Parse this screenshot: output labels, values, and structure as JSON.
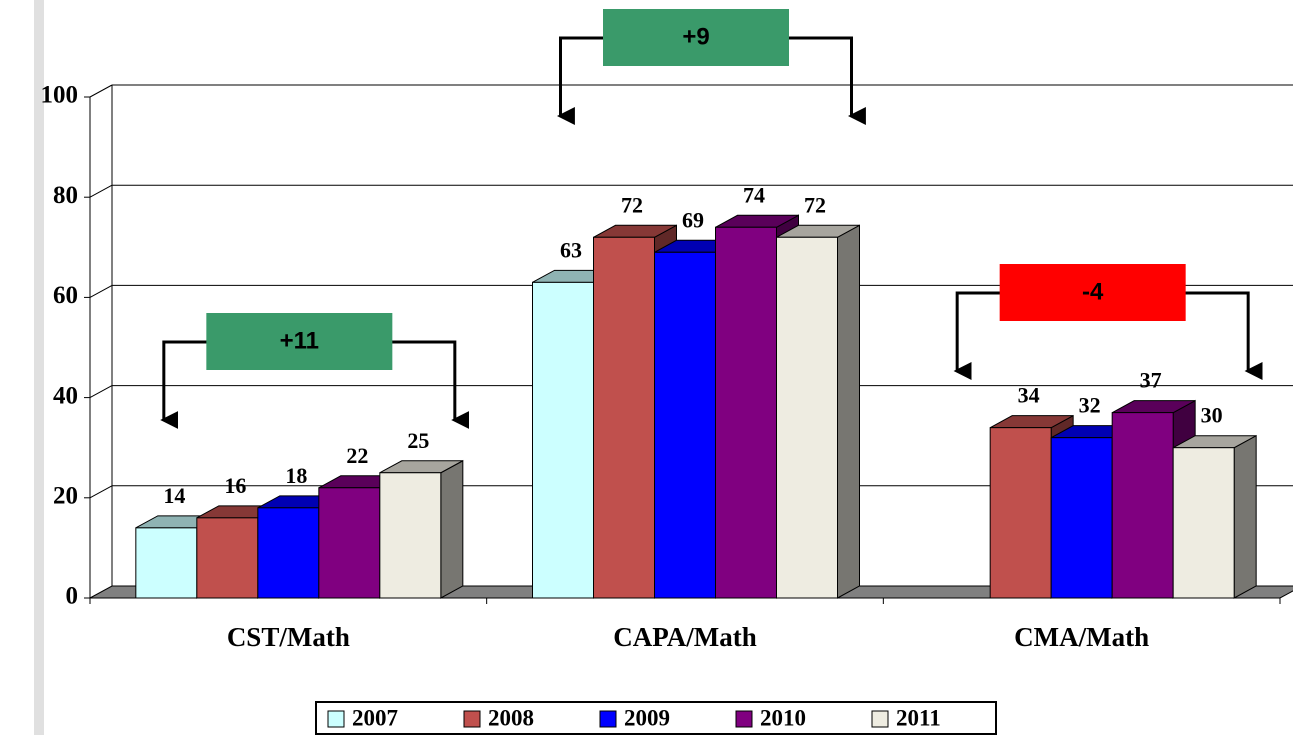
{
  "chart_data": {
    "type": "bar3d",
    "categories": [
      "CST/Math",
      "CAPA/Math",
      "CMA/Math"
    ],
    "series": [
      {
        "name": "2007",
        "color": "#ccffff",
        "values": [
          14,
          63,
          null
        ]
      },
      {
        "name": "2008",
        "color": "#c0504d",
        "values": [
          16,
          72,
          34
        ]
      },
      {
        "name": "2009",
        "color": "#0000ff",
        "values": [
          18,
          69,
          32
        ]
      },
      {
        "name": "2010",
        "color": "#800080",
        "values": [
          22,
          74,
          37
        ]
      },
      {
        "name": "2011",
        "color": "#eeece1",
        "values": [
          25,
          72,
          30
        ]
      }
    ],
    "ylim": [
      0,
      100
    ],
    "yticks": [
      0,
      20,
      40,
      60,
      80,
      100
    ],
    "grid": true,
    "legend": "bottom",
    "annotations": [
      {
        "text": "+11",
        "color": "#3a9a6a"
      },
      {
        "text": "+9",
        "color": "#3a9a6a"
      },
      {
        "text": "-4",
        "color": "#ff0000"
      }
    ]
  }
}
